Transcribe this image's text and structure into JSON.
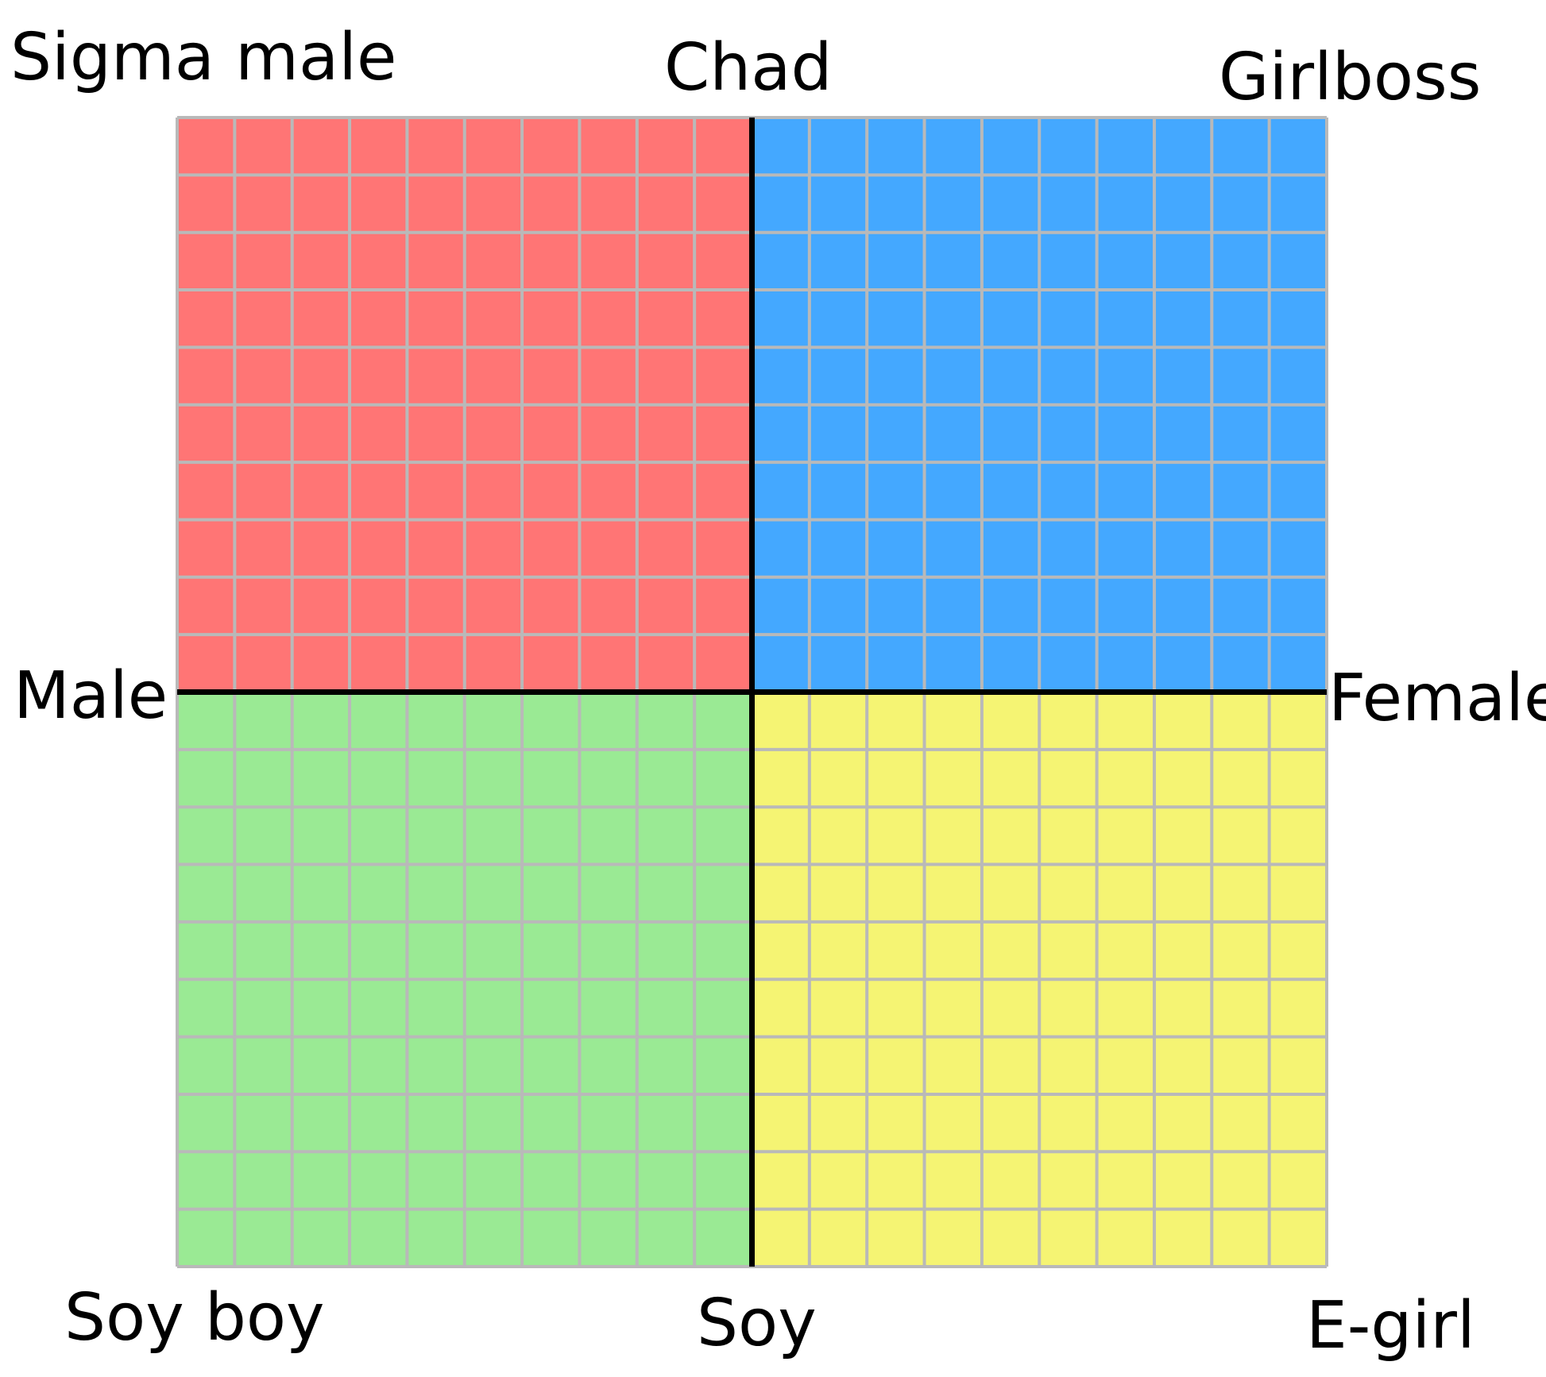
{
  "labels": {
    "top_left": "Sigma male",
    "top": "Chad",
    "top_right": "Girlboss",
    "left": "Male",
    "right": "Female",
    "bottom_left": "Soy boy",
    "bottom": "Soy",
    "bottom_right": "E-girl"
  },
  "quadrants": [
    {
      "name": "top-left",
      "color": "#ff7575"
    },
    {
      "name": "top-right",
      "color": "#44a8ff"
    },
    {
      "name": "bottom-left",
      "color": "#9aea94"
    },
    {
      "name": "bottom-right",
      "color": "#f5f473"
    }
  ],
  "grid": {
    "cells_per_side": 20,
    "line_color": "#b9b9b9",
    "axis_color": "#000000"
  }
}
